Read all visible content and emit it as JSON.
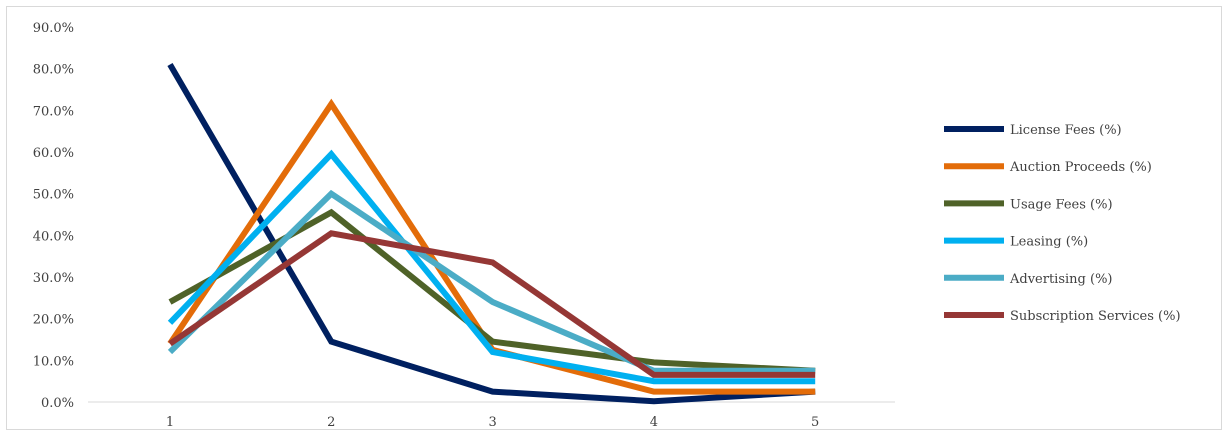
{
  "chart_data": {
    "type": "line",
    "title": "",
    "xlabel": "",
    "ylabel": "",
    "categories": [
      "1",
      "2",
      "3",
      "4",
      "5"
    ],
    "y_ticks": [
      "0.0%",
      "10.0%",
      "20.0%",
      "30.0%",
      "40.0%",
      "50.0%",
      "60.0%",
      "70.0%",
      "80.0%",
      "90.0%"
    ],
    "ylim": [
      0,
      90
    ],
    "y_unit": "%",
    "grid": false,
    "legend_position": "right",
    "series": [
      {
        "name": "License Fees (%)",
        "color": "#002060",
        "values": [
          81.0,
          14.5,
          2.5,
          0.2,
          2.5
        ]
      },
      {
        "name": "Auction Proceeds (%)",
        "color": "#E36C09",
        "values": [
          14.0,
          71.5,
          12.5,
          2.5,
          2.5
        ]
      },
      {
        "name": "Usage Fees (%)",
        "color": "#4F6228",
        "values": [
          24.0,
          45.5,
          14.5,
          9.5,
          7.5
        ]
      },
      {
        "name": "Leasing (%)",
        "color": "#00B0F0",
        "values": [
          19.0,
          59.5,
          12.0,
          5.0,
          5.0
        ]
      },
      {
        "name": "Advertising (%)",
        "color": "#4BACC6",
        "values": [
          12.0,
          50.0,
          24.0,
          7.5,
          7.5
        ]
      },
      {
        "name": "Subscription Services (%)",
        "color": "#953735",
        "values": [
          14.0,
          40.5,
          33.5,
          6.5,
          6.5
        ]
      }
    ]
  }
}
